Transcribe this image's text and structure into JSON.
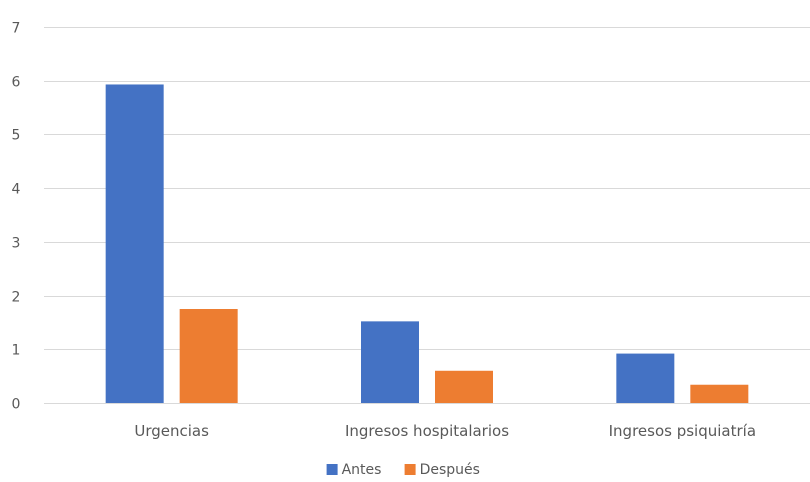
{
  "chart_data": {
    "type": "bar",
    "categories": [
      "Urgencias",
      "Ingresos hospitalarios",
      "Ingresos psiquiatría"
    ],
    "series": [
      {
        "name": "Antes",
        "values": [
          5.93,
          1.52,
          0.92
        ],
        "color": "#4472C4"
      },
      {
        "name": "Después",
        "values": [
          1.75,
          0.6,
          0.34
        ],
        "color": "#ED7D31"
      }
    ],
    "ylim": [
      0,
      7
    ],
    "yticks": [
      0,
      1,
      2,
      3,
      4,
      5,
      6,
      7
    ],
    "grid": true,
    "legend": "bottom-center"
  }
}
